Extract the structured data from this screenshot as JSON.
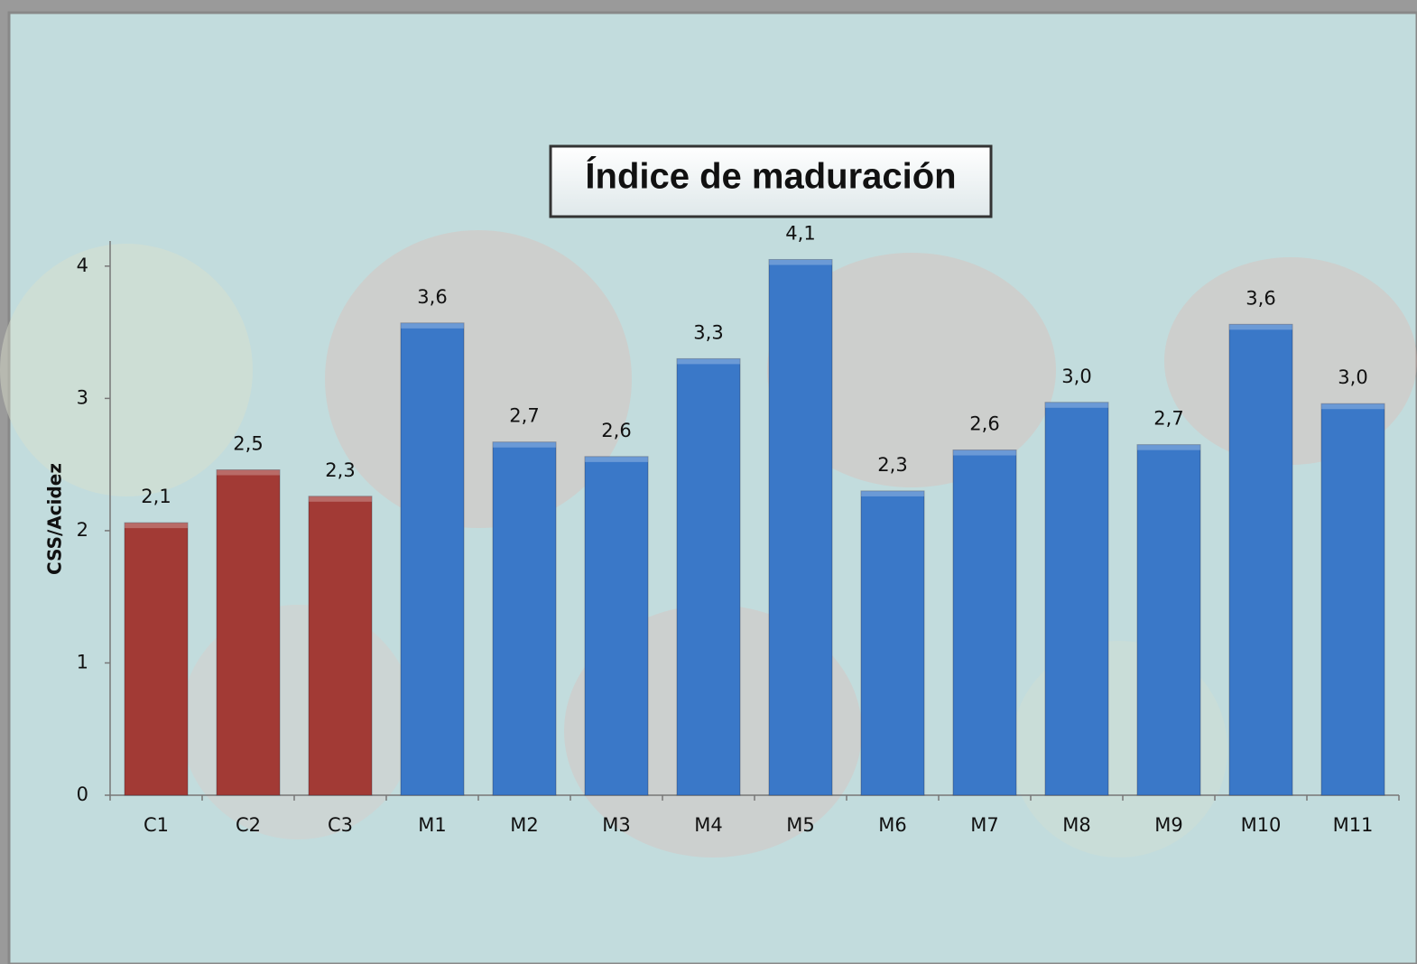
{
  "chart_data": {
    "type": "bar",
    "title": "Índice de maduración",
    "y_label": "CSS/Acidez",
    "categories": [
      "C1",
      "C2",
      "C3",
      "M1",
      "M2",
      "M3",
      "M4",
      "M5",
      "M6",
      "M7",
      "M8",
      "M9",
      "M10",
      "M11"
    ],
    "values": [
      2.06,
      2.46,
      2.26,
      3.57,
      2.67,
      2.56,
      3.3,
      4.05,
      2.3,
      2.61,
      2.97,
      2.65,
      3.56,
      2.96
    ],
    "value_labels": [
      "2,1",
      "2,5",
      "2,3",
      "3,6",
      "2,7",
      "2,6",
      "3,3",
      "4,1",
      "2,3",
      "2,6",
      "3,0",
      "2,7",
      "3,6",
      "3,0"
    ],
    "colors": [
      "#a23a35",
      "#a23a35",
      "#a23a35",
      "#3a78c8",
      "#3a78c8",
      "#3a78c8",
      "#3a78c8",
      "#3a78c8",
      "#3a78c8",
      "#3a78c8",
      "#3a78c8",
      "#3a78c8",
      "#3a78c8",
      "#3a78c8"
    ],
    "ylim": [
      0,
      4.19
    ],
    "yticks": [
      0,
      1,
      2,
      3,
      4
    ],
    "grid": false
  }
}
